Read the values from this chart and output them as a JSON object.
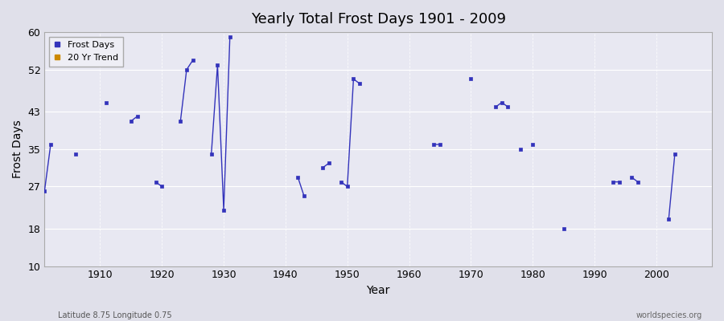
{
  "title": "Yearly Total Frost Days 1901 - 2009",
  "xlabel": "Year",
  "ylabel": "Frost Days",
  "subtitle": "Latitude 8.75 Longitude 0.75",
  "watermark": "worldspecies.org",
  "ylim": [
    10,
    60
  ],
  "yticks": [
    10,
    18,
    27,
    35,
    43,
    52,
    60
  ],
  "xticks": [
    1910,
    1920,
    1930,
    1940,
    1950,
    1960,
    1970,
    1980,
    1990,
    2000
  ],
  "xlim": [
    1901,
    2009
  ],
  "line_color": "#3333bb",
  "marker_color": "#3333bb",
  "marker_size": 2.5,
  "bg_color": "#e0e0ea",
  "plot_bg": "#e8e8f2",
  "grid_color": "#ffffff",
  "legend_items": [
    {
      "label": "Frost Days",
      "color": "#3333bb",
      "marker": "s"
    },
    {
      "label": "20 Yr Trend",
      "color": "#cc8800",
      "marker": "s"
    }
  ],
  "data": {
    "1901": 26,
    "1902": 36,
    "1903": null,
    "1904": null,
    "1905": null,
    "1906": 34,
    "1907": null,
    "1908": null,
    "1909": null,
    "1910": null,
    "1911": 45,
    "1912": null,
    "1913": null,
    "1914": null,
    "1915": 41,
    "1916": 42,
    "1917": null,
    "1918": null,
    "1919": 28,
    "1920": 27,
    "1921": null,
    "1922": null,
    "1923": 41,
    "1924": 52,
    "1925": 54,
    "1926": null,
    "1927": null,
    "1928": 34,
    "1929": 53,
    "1930": 22,
    "1931": 59,
    "1932": null,
    "1933": null,
    "1934": null,
    "1935": null,
    "1936": null,
    "1937": null,
    "1938": null,
    "1939": null,
    "1940": null,
    "1941": null,
    "1942": 29,
    "1943": 25,
    "1944": null,
    "1945": null,
    "1946": 31,
    "1947": 32,
    "1948": null,
    "1949": 28,
    "1950": 27,
    "1951": 50,
    "1952": 49,
    "1953": null,
    "1954": null,
    "1955": null,
    "1956": null,
    "1957": null,
    "1958": null,
    "1959": null,
    "1960": null,
    "1961": null,
    "1962": null,
    "1963": null,
    "1964": 36,
    "1965": 36,
    "1966": null,
    "1967": null,
    "1968": null,
    "1969": null,
    "1970": 50,
    "1971": null,
    "1972": null,
    "1973": null,
    "1974": 44,
    "1975": 45,
    "1976": 44,
    "1977": null,
    "1978": 35,
    "1979": null,
    "1980": 36,
    "1981": null,
    "1982": null,
    "1983": null,
    "1984": null,
    "1985": 18,
    "1986": null,
    "1987": null,
    "1988": null,
    "1989": null,
    "1990": null,
    "1991": null,
    "1992": null,
    "1993": 28,
    "1994": 28,
    "1995": null,
    "1996": 29,
    "1997": 28,
    "1998": null,
    "1999": null,
    "2000": null,
    "2001": null,
    "2002": 20,
    "2003": 34,
    "2004": null,
    "2005": null,
    "2006": null,
    "2007": null,
    "2008": null,
    "2009": null
  }
}
